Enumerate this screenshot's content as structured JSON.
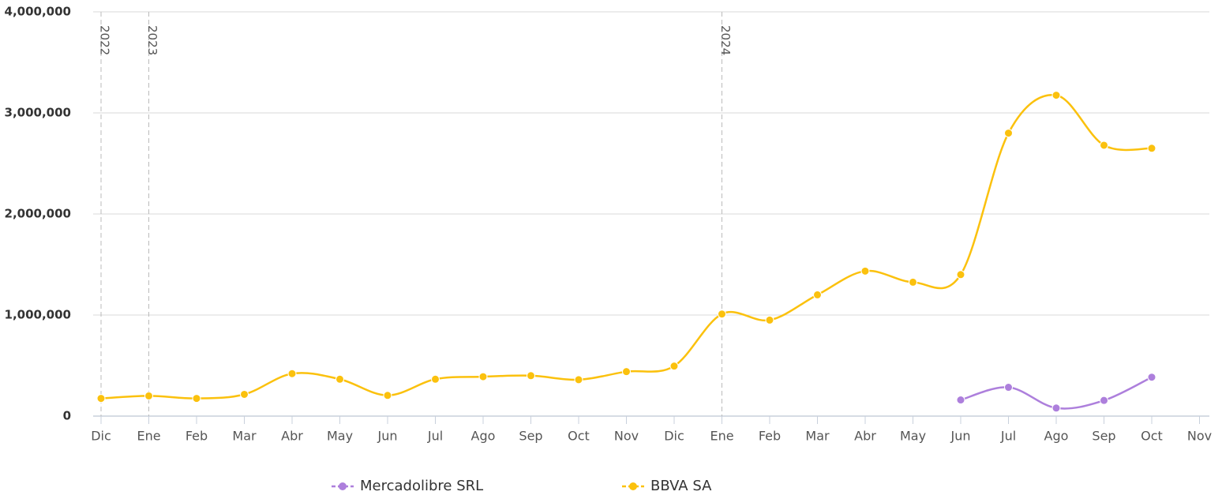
{
  "chart_data": {
    "type": "line",
    "categories": [
      "Dic",
      "Ene",
      "Feb",
      "Mar",
      "Abr",
      "May",
      "Jun",
      "Jul",
      "Ago",
      "Sep",
      "Oct",
      "Nov",
      "Dic",
      "Ene",
      "Feb",
      "Mar",
      "Abr",
      "May",
      "Jun",
      "Jul",
      "Ago",
      "Sep",
      "Oct",
      "Nov"
    ],
    "year_lines": [
      {
        "label": "2022",
        "category_index": 0
      },
      {
        "label": "2023",
        "category_index": 1
      },
      {
        "label": "2024",
        "category_index": 13
      }
    ],
    "series": [
      {
        "name": "Mercadolibre SRL",
        "color": "#ad7fdc",
        "values": [
          null,
          null,
          null,
          null,
          null,
          null,
          null,
          null,
          null,
          null,
          null,
          null,
          null,
          null,
          null,
          null,
          null,
          null,
          160000,
          285000,
          80000,
          155000,
          385000,
          null
        ]
      },
      {
        "name": "BBVA SA",
        "color": "#fbc10d",
        "values": [
          175000,
          200000,
          175000,
          215000,
          420000,
          365000,
          205000,
          365000,
          390000,
          400000,
          360000,
          440000,
          495000,
          1010000,
          950000,
          1200000,
          1435000,
          1325000,
          1400000,
          2800000,
          3175000,
          2680000,
          2650000,
          null
        ]
      }
    ],
    "ylim": [
      0,
      4000000
    ],
    "yticks": [
      0,
      {
        "value": 1000000,
        "label": "1,000,000"
      },
      {
        "value": 2000000,
        "label": "2,000,000"
      },
      {
        "value": 3000000,
        "label": "3,000,000"
      },
      {
        "value": 4000000,
        "label": "4,000,000"
      }
    ],
    "grid": true,
    "legend": "bottom"
  }
}
